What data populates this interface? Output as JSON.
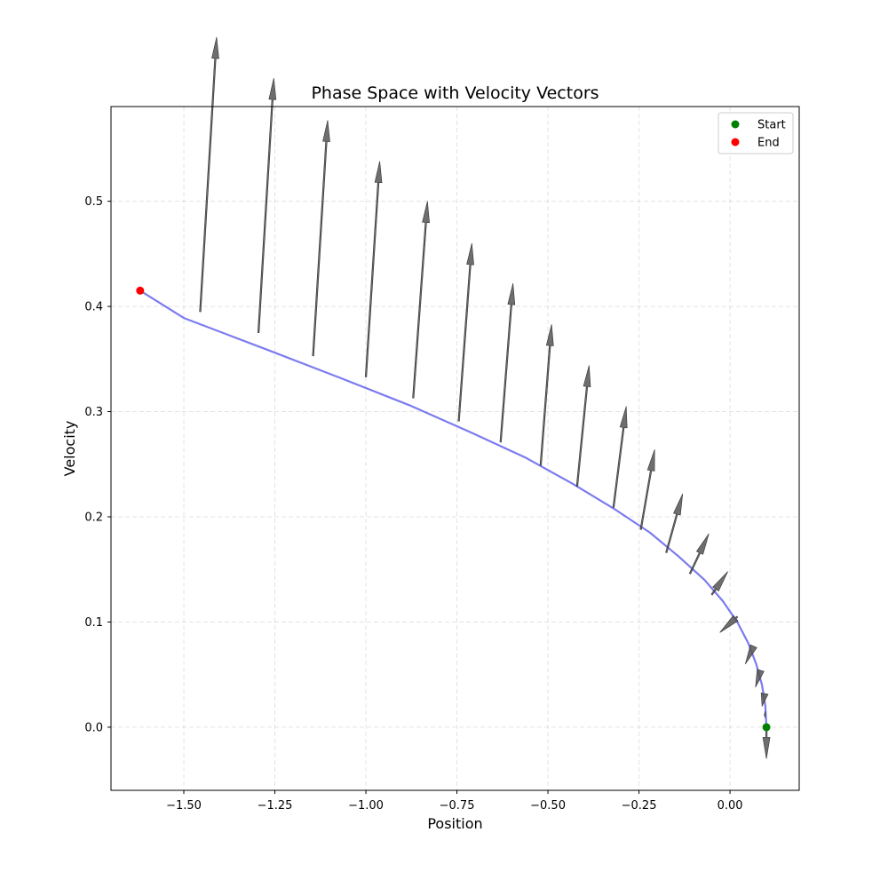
{
  "chart_data": {
    "type": "line",
    "title": "Phase Space with Velocity Vectors",
    "xlabel": "Position",
    "ylabel": "Velocity",
    "xlim": [
      -1.7,
      0.19
    ],
    "ylim": [
      -0.06,
      0.59
    ],
    "grid": true,
    "legend_position": "top-right",
    "x_ticks": [
      -1.5,
      -1.25,
      -1.0,
      -0.75,
      -0.5,
      -0.25,
      0.0
    ],
    "x_tick_labels": [
      "−1.50",
      "−1.25",
      "−1.00",
      "−0.75",
      "−0.50",
      "−0.25",
      "0.00"
    ],
    "y_ticks": [
      0.0,
      0.1,
      0.2,
      0.3,
      0.4,
      0.5
    ],
    "y_tick_labels": [
      "0.0",
      "0.1",
      "0.2",
      "0.3",
      "0.4",
      "0.5"
    ],
    "trajectory": {
      "color": "#7b7bf0",
      "x": [
        0.1,
        0.097,
        0.088,
        0.072,
        0.05,
        0.02,
        -0.02,
        -0.07,
        -0.14,
        -0.22,
        -0.32,
        -0.43,
        -0.56,
        -0.71,
        -0.88,
        -1.07,
        -1.28,
        -1.5,
        -1.62
      ],
      "y": [
        0.0,
        0.02,
        0.04,
        0.06,
        0.08,
        0.1,
        0.12,
        0.14,
        0.162,
        0.185,
        0.208,
        0.231,
        0.256,
        0.28,
        0.306,
        0.332,
        0.36,
        0.389,
        0.415
      ]
    },
    "velocity_vectors": {
      "color": "#555555",
      "vectors": [
        {
          "x": 0.1,
          "y": 0.0,
          "dx": 0.0,
          "dy": -0.03
        },
        {
          "x": 0.097,
          "y": 0.012,
          "dx": -0.003,
          "dy": 0.0
        },
        {
          "x": 0.095,
          "y": 0.032,
          "dx": -0.007,
          "dy": -0.012
        },
        {
          "x": 0.084,
          "y": 0.054,
          "dx": -0.014,
          "dy": -0.016
        },
        {
          "x": 0.065,
          "y": 0.077,
          "dx": -0.023,
          "dy": -0.017
        },
        {
          "x": 0.02,
          "y": 0.105,
          "dx": -0.048,
          "dy": -0.015
        },
        {
          "x": -0.05,
          "y": 0.126,
          "dx": 0.044,
          "dy": 0.022
        },
        {
          "x": -0.11,
          "y": 0.146,
          "dx": 0.052,
          "dy": 0.038
        },
        {
          "x": -0.175,
          "y": 0.166,
          "dx": 0.045,
          "dy": 0.056
        },
        {
          "x": -0.245,
          "y": 0.188,
          "dx": 0.038,
          "dy": 0.076
        },
        {
          "x": -0.32,
          "y": 0.209,
          "dx": 0.035,
          "dy": 0.096
        },
        {
          "x": -0.42,
          "y": 0.229,
          "dx": 0.033,
          "dy": 0.115
        },
        {
          "x": -0.52,
          "y": 0.249,
          "dx": 0.03,
          "dy": 0.134
        },
        {
          "x": -0.63,
          "y": 0.271,
          "dx": 0.034,
          "dy": 0.151
        },
        {
          "x": -0.745,
          "y": 0.291,
          "dx": 0.036,
          "dy": 0.169
        },
        {
          "x": -0.87,
          "y": 0.313,
          "dx": 0.039,
          "dy": 0.187
        },
        {
          "x": -1.0,
          "y": 0.333,
          "dx": 0.038,
          "dy": 0.205
        },
        {
          "x": -1.145,
          "y": 0.353,
          "dx": 0.04,
          "dy": 0.224
        },
        {
          "x": -1.295,
          "y": 0.375,
          "dx": 0.042,
          "dy": 0.242
        },
        {
          "x": -1.455,
          "y": 0.395,
          "dx": 0.045,
          "dy": 0.261
        }
      ]
    },
    "markers": [
      {
        "name": "Start",
        "x": 0.1,
        "y": 0.0,
        "color": "#008000"
      },
      {
        "name": "End",
        "x": -1.62,
        "y": 0.415,
        "color": "#ff0000"
      }
    ],
    "legend": [
      {
        "label": "Start",
        "color": "#008000"
      },
      {
        "label": "End",
        "color": "#ff0000"
      }
    ]
  }
}
